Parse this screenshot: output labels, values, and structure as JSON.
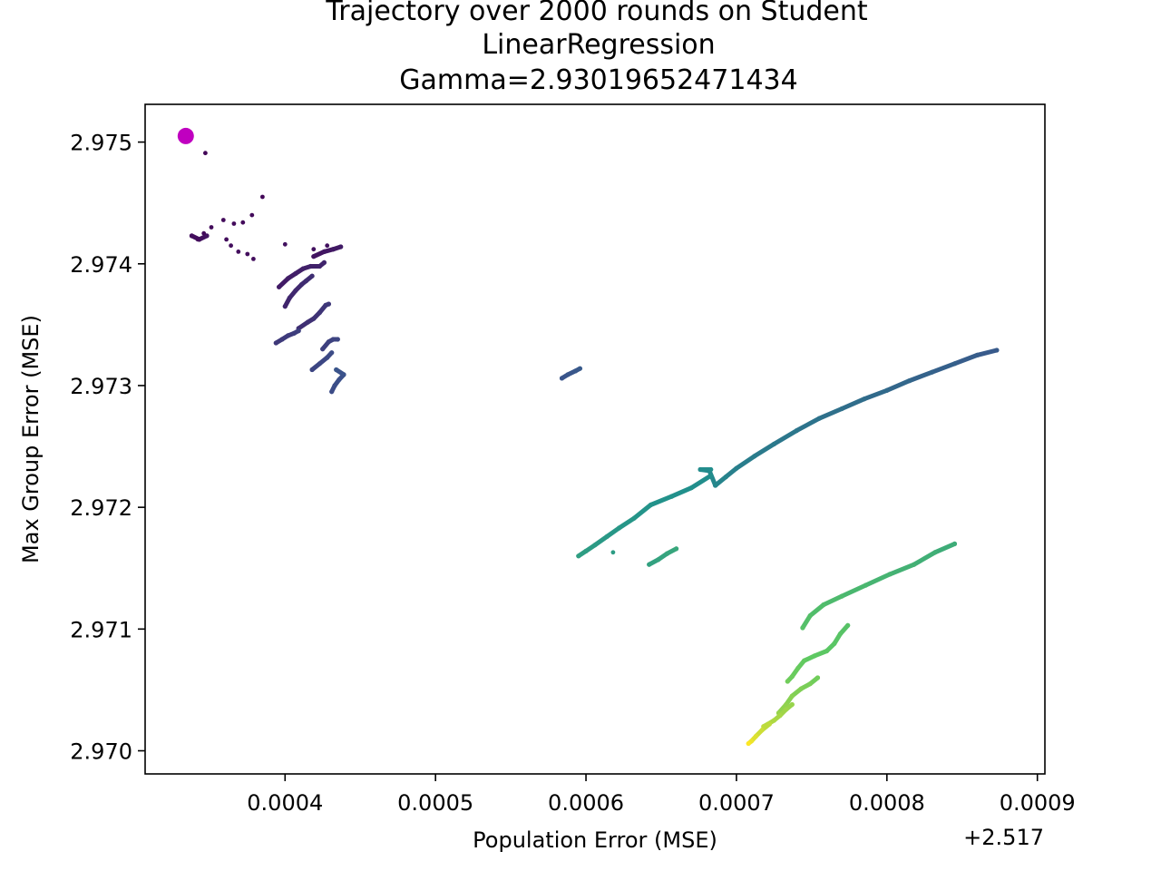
{
  "chart_data": {
    "type": "scatter",
    "title_lines": [
      "Trajectory over 2000 rounds on Student",
      "LinearRegression",
      "Gamma=2.93019652471434"
    ],
    "xlabel": "Population Error (MSE)",
    "ylabel": "Max Group Error (MSE)",
    "x_offset_label": "+2.517",
    "x_offset": 2.517,
    "xlim": [
      0.000307,
      0.000905
    ],
    "ylim": [
      2.96981,
      2.97531
    ],
    "x_ticks": [
      0.0004,
      0.0005,
      0.0006,
      0.0007,
      0.0008,
      0.0009
    ],
    "x_tick_labels": [
      "0.0004",
      "0.0005",
      "0.0006",
      "0.0007",
      "0.0008",
      "0.0009"
    ],
    "y_ticks": [
      2.97,
      2.971,
      2.972,
      2.973,
      2.974,
      2.975
    ],
    "y_tick_labels": [
      "2.970",
      "2.971",
      "2.972",
      "2.973",
      "2.974",
      "2.975"
    ],
    "colormap": "viridis",
    "color_variable": "round",
    "rounds": 2000,
    "start_point": {
      "x": 0.000334,
      "y": 2.97505,
      "color": "#c000c0"
    },
    "isolated_points": [
      {
        "x": 0.000347,
        "y": 2.97491,
        "t": 0.02
      },
      {
        "x": 0.000385,
        "y": 2.97455,
        "t": 0.02
      },
      {
        "x": 0.000342,
        "y": 2.9742,
        "t": 0.03
      },
      {
        "x": 0.000346,
        "y": 2.97425,
        "t": 0.03
      },
      {
        "x": 0.000351,
        "y": 2.9743,
        "t": 0.03
      },
      {
        "x": 0.000359,
        "y": 2.97436,
        "t": 0.03
      },
      {
        "x": 0.000366,
        "y": 2.97433,
        "t": 0.03
      },
      {
        "x": 0.000372,
        "y": 2.97434,
        "t": 0.03
      },
      {
        "x": 0.000378,
        "y": 2.9744,
        "t": 0.03
      },
      {
        "x": 0.000361,
        "y": 2.9742,
        "t": 0.04
      },
      {
        "x": 0.000364,
        "y": 2.97415,
        "t": 0.04
      },
      {
        "x": 0.000369,
        "y": 2.9741,
        "t": 0.04
      },
      {
        "x": 0.000375,
        "y": 2.97408,
        "t": 0.04
      },
      {
        "x": 0.000379,
        "y": 2.97404,
        "t": 0.04
      },
      {
        "x": 0.0004,
        "y": 2.97416,
        "t": 0.05
      },
      {
        "x": 0.000419,
        "y": 2.97412,
        "t": 0.05
      },
      {
        "x": 0.000428,
        "y": 2.97415,
        "t": 0.05
      },
      {
        "x": 0.000618,
        "y": 2.97163,
        "t": 0.55
      }
    ],
    "segments": [
      {
        "t": [
          0.04,
          0.06
        ],
        "points": [
          [
            0.000338,
            2.97423
          ],
          [
            0.000343,
            2.9742
          ],
          [
            0.000348,
            2.97423
          ]
        ]
      },
      {
        "t": [
          0.06,
          0.08
        ],
        "points": [
          [
            0.000419,
            2.97406
          ],
          [
            0.000426,
            2.9741
          ],
          [
            0.000432,
            2.97412
          ],
          [
            0.000437,
            2.97414
          ]
        ]
      },
      {
        "t": [
          0.08,
          0.11
        ],
        "points": [
          [
            0.000396,
            2.97381
          ],
          [
            0.000402,
            2.97388
          ],
          [
            0.000407,
            2.97392
          ],
          [
            0.000412,
            2.97396
          ],
          [
            0.000417,
            2.97398
          ],
          [
            0.000423,
            2.97398
          ],
          [
            0.000426,
            2.97401
          ]
        ]
      },
      {
        "t": [
          0.11,
          0.14
        ],
        "points": [
          [
            0.0004,
            2.97365
          ],
          [
            0.000403,
            2.97372
          ],
          [
            0.000407,
            2.97378
          ],
          [
            0.000411,
            2.97383
          ],
          [
            0.000414,
            2.97386
          ],
          [
            0.000418,
            2.9739
          ]
        ]
      },
      {
        "t": [
          0.14,
          0.17
        ],
        "points": [
          [
            0.000409,
            2.97347
          ],
          [
            0.000415,
            2.97352
          ],
          [
            0.000419,
            2.97355
          ],
          [
            0.000423,
            2.9736
          ],
          [
            0.000427,
            2.97366
          ],
          [
            0.000429,
            2.97367
          ]
        ]
      },
      {
        "t": [
          0.17,
          0.19
        ],
        "points": [
          [
            0.000394,
            2.97335
          ],
          [
            0.000398,
            2.97338
          ],
          [
            0.000402,
            2.97341
          ],
          [
            0.000406,
            2.97343
          ],
          [
            0.000409,
            2.97345
          ]
        ]
      },
      {
        "t": [
          0.19,
          0.21
        ],
        "points": [
          [
            0.000425,
            2.9733
          ],
          [
            0.000429,
            2.97336
          ],
          [
            0.000432,
            2.97338
          ],
          [
            0.000435,
            2.97338
          ]
        ]
      },
      {
        "t": [
          0.21,
          0.23
        ],
        "points": [
          [
            0.000418,
            2.97313
          ],
          [
            0.000423,
            2.97318
          ],
          [
            0.000428,
            2.97323
          ],
          [
            0.000431,
            2.97327
          ]
        ]
      },
      {
        "t": [
          0.23,
          0.26
        ],
        "points": [
          [
            0.000431,
            2.97295
          ],
          [
            0.000433,
            2.973
          ],
          [
            0.000436,
            2.97305
          ],
          [
            0.000439,
            2.97309
          ],
          [
            0.000434,
            2.97313
          ]
        ]
      },
      {
        "t": [
          0.26,
          0.28
        ],
        "points": [
          [
            0.000584,
            2.97306
          ],
          [
            0.000588,
            2.97309
          ],
          [
            0.000593,
            2.97312
          ],
          [
            0.000596,
            2.97314
          ]
        ]
      },
      {
        "t": [
          0.28,
          0.46
        ],
        "points": [
          [
            0.000873,
            2.97329
          ],
          [
            0.00086,
            2.97325
          ],
          [
            0.000845,
            2.97318
          ],
          [
            0.00083,
            2.97311
          ],
          [
            0.000815,
            2.97304
          ],
          [
            0.0008,
            2.97296
          ],
          [
            0.000785,
            2.97289
          ],
          [
            0.00077,
            2.97281
          ],
          [
            0.000755,
            2.97273
          ],
          [
            0.00074,
            2.97263
          ],
          [
            0.000725,
            2.97252
          ],
          [
            0.000712,
            2.97242
          ],
          [
            0.0007,
            2.97232
          ],
          [
            0.000693,
            2.97225
          ],
          [
            0.000686,
            2.97218
          ]
        ]
      },
      {
        "t": [
          0.46,
          0.49
        ],
        "points": [
          [
            0.000686,
            2.97218
          ],
          [
            0.000682,
            2.9723
          ],
          [
            0.000676,
            2.97231
          ],
          [
            0.000683,
            2.97231
          ]
        ]
      },
      {
        "t": [
          0.49,
          0.56
        ],
        "points": [
          [
            0.000683,
            2.97226
          ],
          [
            0.00067,
            2.97216
          ],
          [
            0.000657,
            2.97209
          ],
          [
            0.000643,
            2.97202
          ],
          [
            0.000632,
            2.97191
          ],
          [
            0.000622,
            2.97183
          ],
          [
            0.000614,
            2.97176
          ],
          [
            0.000606,
            2.97169
          ],
          [
            0.0006,
            2.97164
          ],
          [
            0.000595,
            2.9716
          ]
        ]
      },
      {
        "t": [
          0.57,
          0.6
        ],
        "points": [
          [
            0.000642,
            2.97153
          ],
          [
            0.000648,
            2.97157
          ],
          [
            0.000654,
            2.97162
          ],
          [
            0.00066,
            2.97166
          ]
        ]
      },
      {
        "t": [
          0.62,
          0.72
        ],
        "points": [
          [
            0.000845,
            2.9717
          ],
          [
            0.000832,
            2.97163
          ],
          [
            0.000818,
            2.97153
          ],
          [
            0.000802,
            2.97145
          ],
          [
            0.000786,
            2.97136
          ],
          [
            0.00077,
            2.97127
          ],
          [
            0.000758,
            2.9712
          ],
          [
            0.000749,
            2.97111
          ],
          [
            0.000744,
            2.97101
          ]
        ]
      },
      {
        "t": [
          0.72,
          0.78
        ],
        "points": [
          [
            0.000774,
            2.97103
          ],
          [
            0.000769,
            2.97096
          ],
          [
            0.000765,
            2.97088
          ],
          [
            0.00076,
            2.97082
          ],
          [
            0.000752,
            2.97078
          ],
          [
            0.000745,
            2.97074
          ],
          [
            0.000741,
            2.97068
          ],
          [
            0.000737,
            2.97061
          ],
          [
            0.000734,
            2.97057
          ]
        ]
      },
      {
        "t": [
          0.78,
          0.84
        ],
        "points": [
          [
            0.000754,
            2.9706
          ],
          [
            0.000749,
            2.97055
          ],
          [
            0.000743,
            2.97051
          ],
          [
            0.000737,
            2.97045
          ],
          [
            0.000733,
            2.97038
          ],
          [
            0.000728,
            2.97031
          ]
        ]
      },
      {
        "t": [
          0.84,
          0.9
        ],
        "points": [
          [
            0.000737,
            2.97038
          ],
          [
            0.000733,
            2.97034
          ],
          [
            0.000729,
            2.97029
          ],
          [
            0.000725,
            2.97025
          ],
          [
            0.000721,
            2.97022
          ],
          [
            0.000718,
            2.9702
          ]
        ]
      },
      {
        "t": [
          0.9,
          1.0
        ],
        "points": [
          [
            0.000722,
            2.97022
          ],
          [
            0.000717,
            2.97017
          ],
          [
            0.000713,
            2.97012
          ],
          [
            0.00071,
            2.97008
          ],
          [
            0.000708,
            2.97006
          ]
        ]
      }
    ]
  }
}
